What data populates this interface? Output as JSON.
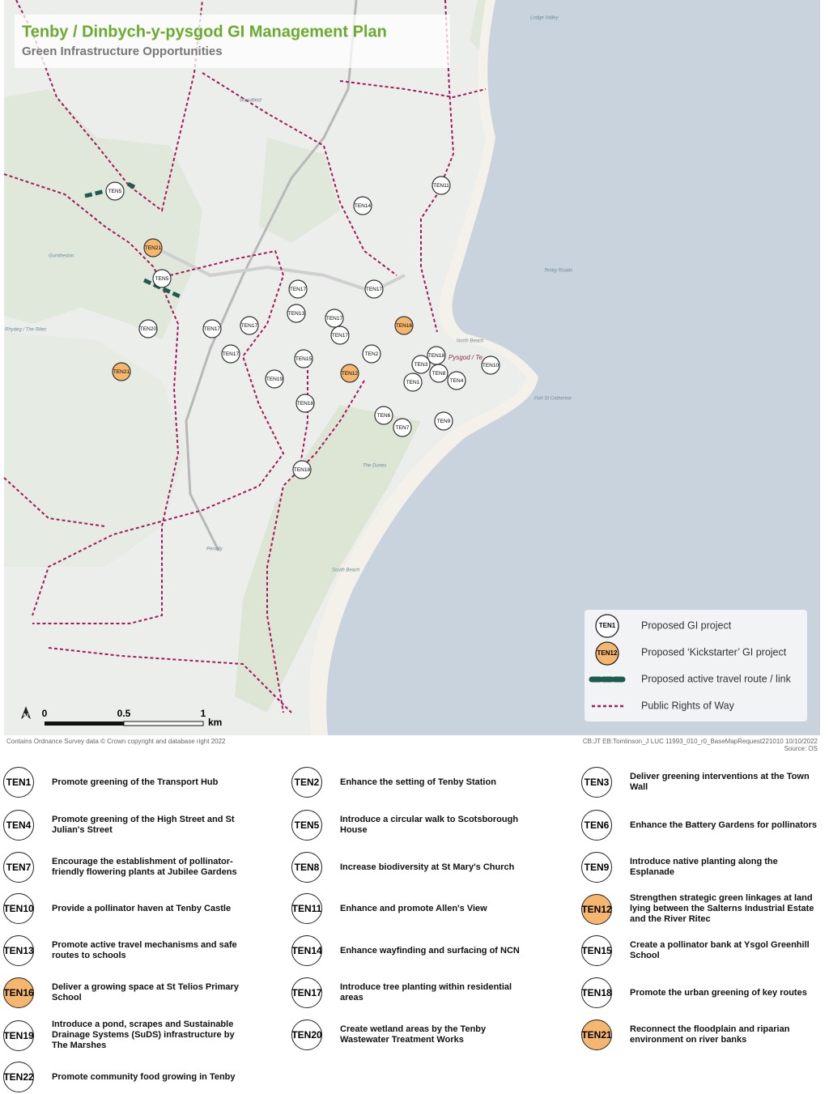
{
  "header": {
    "title": "Tenby / Dinbych-y-pysgod GI Management Plan",
    "subtitle": "Green Infrastructure Opportunities"
  },
  "map": {
    "markers": [
      {
        "label": "TEN5",
        "fill": "#ffffff"
      },
      {
        "label": "TEN21",
        "fill": "#f5b66e"
      },
      {
        "label": "TEN5",
        "fill": "#ffffff"
      },
      {
        "label": "TEN11",
        "fill": "#ffffff"
      },
      {
        "label": "TEN14",
        "fill": "#ffffff"
      },
      {
        "label": "TEN17",
        "fill": "#ffffff"
      },
      {
        "label": "TEN17",
        "fill": "#ffffff"
      },
      {
        "label": "TEN13",
        "fill": "#ffffff"
      },
      {
        "label": "TEN17",
        "fill": "#ffffff"
      },
      {
        "label": "TEN17",
        "fill": "#ffffff"
      },
      {
        "label": "TEN17",
        "fill": "#ffffff"
      },
      {
        "label": "TEN20",
        "fill": "#ffffff"
      },
      {
        "label": "TEN16",
        "fill": "#f5b66e"
      },
      {
        "label": "TEN17",
        "fill": "#ffffff"
      },
      {
        "label": "TEN17",
        "fill": "#ffffff"
      },
      {
        "label": "TEN15",
        "fill": "#ffffff"
      },
      {
        "label": "TEN2",
        "fill": "#ffffff"
      },
      {
        "label": "TEN18",
        "fill": "#ffffff"
      },
      {
        "label": "TEN3",
        "fill": "#ffffff"
      },
      {
        "label": "TEN21",
        "fill": "#f5b66e"
      },
      {
        "label": "TEN12",
        "fill": "#f5b66e"
      },
      {
        "label": "TEN8",
        "fill": "#ffffff"
      },
      {
        "label": "TEN10",
        "fill": "#ffffff"
      },
      {
        "label": "TEN19",
        "fill": "#ffffff"
      },
      {
        "label": "TEN1",
        "fill": "#ffffff"
      },
      {
        "label": "TEN4",
        "fill": "#ffffff"
      },
      {
        "label": "TEN18",
        "fill": "#ffffff"
      },
      {
        "label": "TEN6",
        "fill": "#ffffff"
      },
      {
        "label": "TEN9",
        "fill": "#ffffff"
      },
      {
        "label": "TEN7",
        "fill": "#ffffff"
      },
      {
        "label": "TEN18",
        "fill": "#ffffff"
      }
    ],
    "place_names": [
      "Tenby Roads",
      "North Beach",
      "South Beach",
      "The Dunes",
      "Penally",
      "Rhydeg / The Ritec",
      "Lodge Valley",
      "Gumfreston",
      "Woodfield",
      "Fort St Catherine",
      "Pysgod / Te"
    ],
    "north": "N",
    "scale_bar": {
      "labels": [
        "0",
        "0.5",
        "1"
      ],
      "unit": "km"
    }
  },
  "legend": {
    "items": [
      {
        "symbol": "TEN1",
        "fill": "#ffffff",
        "label": "Proposed GI project"
      },
      {
        "symbol": "TEN12",
        "fill": "#f5b66e",
        "label": "Proposed ‘Kickstarter’ GI project"
      },
      {
        "label": "Proposed active travel route / link",
        "color": "#1e5a4e"
      },
      {
        "label": "Public Rights of Way",
        "color": "#a3195b"
      }
    ]
  },
  "credits": {
    "left": "Contains Ordnance Survey data © Crown copyright and database right 2022",
    "right": [
      "CB:JT EB:Tomlinson_J LUC 11993_010_r0_BaseMapRequest221010  10/10/2022",
      "Source: OS"
    ]
  },
  "projects": [
    {
      "id": "TEN1",
      "text": "Promote greening of the Transport Hub",
      "fill": "#ffffff"
    },
    {
      "id": "TEN2",
      "text": "Enhance the setting of Tenby Station",
      "fill": "#ffffff"
    },
    {
      "id": "TEN3",
      "text": "Deliver greening interventions at the Town Wall",
      "fill": "#ffffff"
    },
    {
      "id": "TEN4",
      "text": "Promote greening of the High Street and St Julian's Street",
      "fill": "#ffffff"
    },
    {
      "id": "TEN5",
      "text": "Introduce a circular walk to Scotsborough House",
      "fill": "#ffffff"
    },
    {
      "id": "TEN6",
      "text": "Enhance the Battery Gardens for pollinators",
      "fill": "#ffffff"
    },
    {
      "id": "TEN7",
      "text": "Encourage the establishment of pollinator-friendly flowering plants at Jubilee Gardens",
      "fill": "#ffffff"
    },
    {
      "id": "TEN8",
      "text": "Increase biodiversity at St Mary's Church",
      "fill": "#ffffff"
    },
    {
      "id": "TEN9",
      "text": "Introduce native planting along the Esplanade",
      "fill": "#ffffff"
    },
    {
      "id": "TEN10",
      "text": "Provide a pollinator haven at Tenby Castle",
      "fill": "#ffffff"
    },
    {
      "id": "TEN11",
      "text": "Enhance and promote Allen's View",
      "fill": "#ffffff"
    },
    {
      "id": "TEN12",
      "text": "Strengthen strategic green linkages at land lying between the Salterns Industrial Estate and the River Ritec",
      "fill": "#f5b66e"
    },
    {
      "id": "TEN13",
      "text": "Promote active travel mechanisms and safe routes to schools",
      "fill": "#ffffff"
    },
    {
      "id": "TEN14",
      "text": "Enhance wayfinding and surfacing of NCN",
      "fill": "#ffffff"
    },
    {
      "id": "TEN15",
      "text": "Create a pollinator bank at Ysgol Greenhill School",
      "fill": "#ffffff"
    },
    {
      "id": "TEN16",
      "text": "Deliver a growing space at St Telios Primary School",
      "fill": "#f5b66e"
    },
    {
      "id": "TEN17",
      "text": "Introduce tree planting within residential areas",
      "fill": "#ffffff"
    },
    {
      "id": "TEN18",
      "text": "Promote the urban greening of key routes",
      "fill": "#ffffff"
    },
    {
      "id": "TEN19",
      "text": "Introduce a pond, scrapes and Sustainable Drainage Systems (SuDS) infrastructure by The Marshes",
      "fill": "#ffffff"
    },
    {
      "id": "TEN20",
      "text": "Create wetland areas by the Tenby Wastewater Treatment Works",
      "fill": "#ffffff"
    },
    {
      "id": "TEN21",
      "text": "Reconnect the floodplain and riparian environment on river banks",
      "fill": "#f5b66e"
    },
    {
      "id": "TEN22",
      "text": "Promote community food growing in Tenby",
      "fill": "#ffffff"
    }
  ]
}
